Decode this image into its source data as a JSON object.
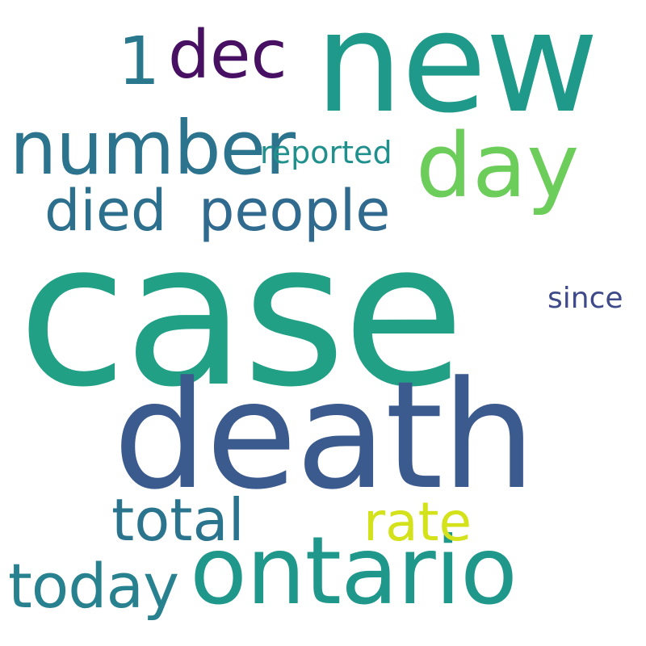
{
  "words": {
    "case": {
      "text": "case",
      "color": "#21a086"
    },
    "death": {
      "text": "death",
      "color": "#3b5a8e"
    },
    "new": {
      "text": "new",
      "color": "#1f9a8a"
    },
    "ontario": {
      "text": "ontario",
      "color": "#1f988b"
    },
    "number": {
      "text": "number",
      "color": "#2c738e"
    },
    "day": {
      "text": "day",
      "color": "#6ccd5a"
    },
    "dec": {
      "text": "dec",
      "color": "#471063"
    },
    "one": {
      "text": "1",
      "color": "#2a788e"
    },
    "people": {
      "text": "people",
      "color": "#306a8e"
    },
    "died": {
      "text": "died",
      "color": "#2d708e"
    },
    "total": {
      "text": "total",
      "color": "#2b748e"
    },
    "rate": {
      "text": "rate",
      "color": "#d3e21b"
    },
    "today": {
      "text": "today",
      "color": "#27818e"
    },
    "reported": {
      "text": "reported",
      "color": "#20908d"
    },
    "since": {
      "text": "since",
      "color": "#3e4a89"
    }
  }
}
